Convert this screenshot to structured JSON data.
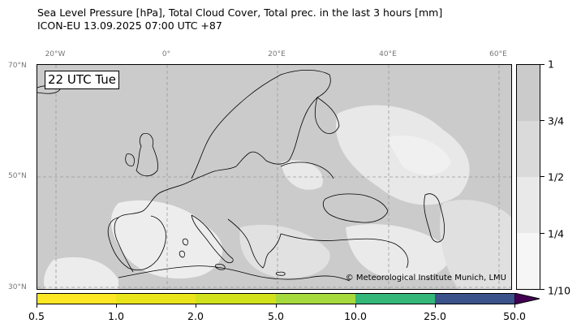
{
  "title": {
    "line1": "Sea Level Pressure [hPa], Total Cloud Cover, Total prec. in the last 3 hours [mm]",
    "line2": "ICON-EU 13.09.2025 07:00 UTC +87"
  },
  "map": {
    "valid_time": "22 UTC Tue",
    "credit": "© Meteorological Institute Munich, LMU",
    "longitude_labels": [
      "20°W",
      "0°",
      "20°E",
      "40°E",
      "60°E"
    ],
    "latitude_labels": [
      "70°N",
      "50°N",
      "30°N"
    ],
    "colors": {
      "land_cloud": "#cbcbcb",
      "clear": "#ffffff",
      "coast": "#000000",
      "grid": "#999999"
    }
  },
  "cloud_cover_legend": {
    "labels": [
      "1",
      "3/4",
      "1/2",
      "1/4",
      "1/10"
    ],
    "colors": [
      "#cbcbcb",
      "#dadada",
      "#e9e9e9",
      "#f6f6f6"
    ]
  },
  "precip_legend": {
    "labels": [
      "0.5",
      "1.0",
      "2.0",
      "5.0",
      "10.0",
      "25.0",
      "50.0"
    ],
    "colors": [
      "#fde725",
      "#d9e020",
      "#a6d93c",
      "#3ab96f",
      "#3a548c",
      "#440154"
    ]
  }
}
